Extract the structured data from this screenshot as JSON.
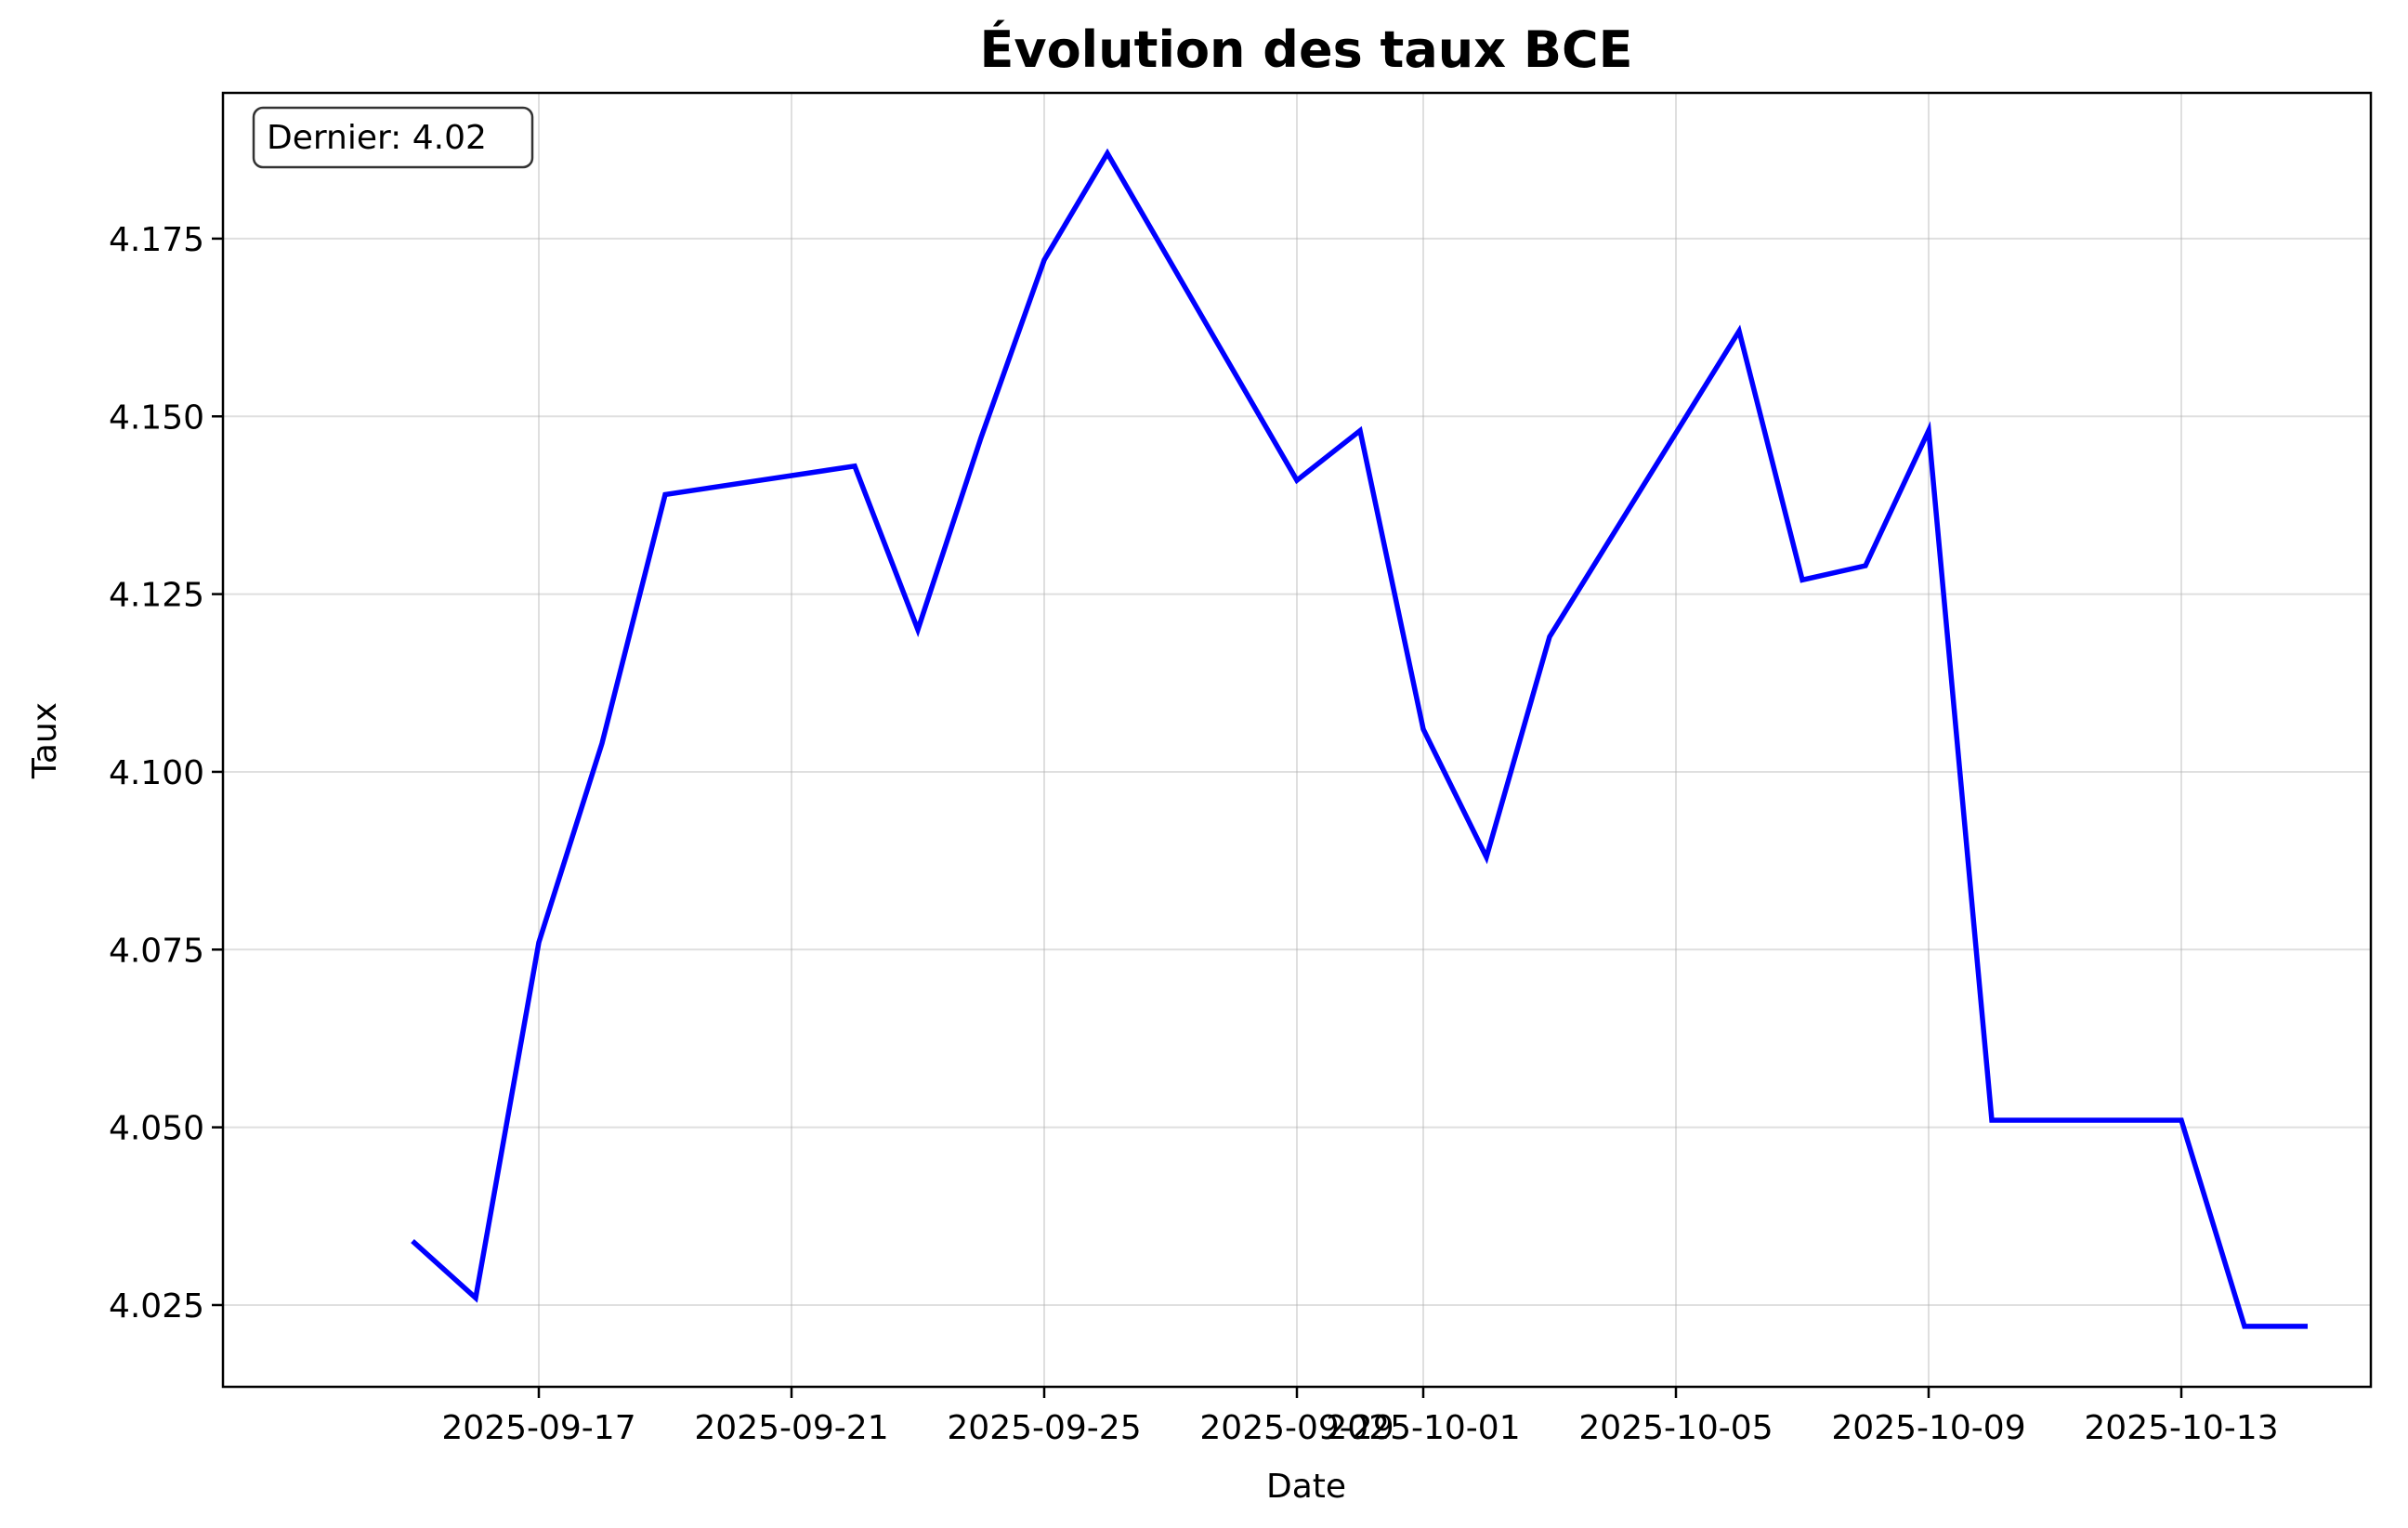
{
  "chart_data": {
    "type": "line",
    "title": "Évolution des taux BCE",
    "xlabel": "Date",
    "ylabel": "Taux",
    "annotation": "Dernier: 4.02",
    "grid": true,
    "x_axis_type": "date",
    "xlim": [
      "2025-09-12",
      "2025-10-16"
    ],
    "ylim": [
      4.0135,
      4.1955
    ],
    "x_ticks": [
      "2025-09-17",
      "2025-09-21",
      "2025-09-25",
      "2025-09-29",
      "2025-10-01",
      "2025-10-05",
      "2025-10-09",
      "2025-10-13"
    ],
    "y_ticks": [
      4.025,
      4.05,
      4.075,
      4.1,
      4.125,
      4.15,
      4.175
    ],
    "y_tick_labels": [
      "4.025",
      "4.050",
      "4.075",
      "4.100",
      "4.125",
      "4.150",
      "4.175"
    ],
    "series": [
      {
        "color": "#0000ff",
        "x": [
          "2025-09-15",
          "2025-09-16",
          "2025-09-17",
          "2025-09-18",
          "2025-09-19",
          "2025-09-22",
          "2025-09-23",
          "2025-09-24",
          "2025-09-25",
          "2025-09-26",
          "2025-09-29",
          "2025-09-30",
          "2025-10-01",
          "2025-10-02",
          "2025-10-03",
          "2025-10-06",
          "2025-10-07",
          "2025-10-08",
          "2025-10-09",
          "2025-10-10",
          "2025-10-13",
          "2025-10-14",
          "2025-10-15"
        ],
        "y": [
          4.034,
          4.026,
          4.076,
          4.104,
          4.139,
          4.143,
          4.12,
          4.147,
          4.172,
          4.187,
          4.141,
          4.148,
          4.106,
          4.088,
          4.119,
          4.162,
          4.127,
          4.129,
          4.148,
          4.051,
          4.051,
          4.022,
          4.022
        ]
      }
    ]
  }
}
